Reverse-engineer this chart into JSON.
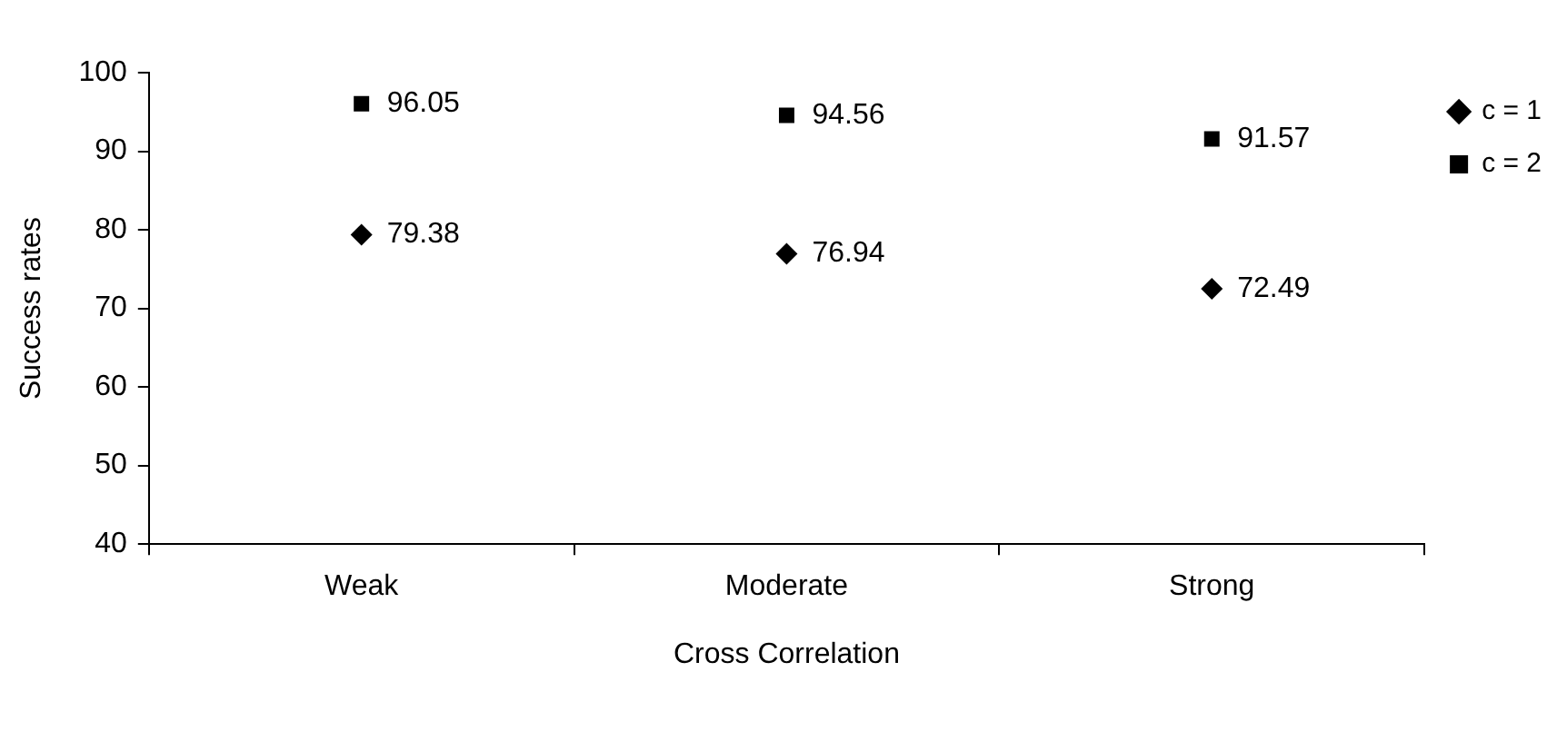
{
  "chart_data": {
    "type": "scatter",
    "xlabel": "Cross Correlation",
    "ylabel": "Success rates",
    "categories": [
      "Weak",
      "Moderate",
      "Strong"
    ],
    "series": [
      {
        "name": "c = 1",
        "color": "#000000",
        "marker": "diamond",
        "values": [
          79.38,
          76.94,
          72.49
        ]
      },
      {
        "name": "c = 2",
        "color": "#000000",
        "marker": "square",
        "values": [
          96.05,
          94.56,
          91.57
        ]
      }
    ],
    "ylim": [
      40,
      100
    ],
    "yticks": [
      40,
      50,
      60,
      70,
      80,
      90,
      100
    ],
    "grid": false,
    "legend": "top right",
    "data_labels": true
  }
}
